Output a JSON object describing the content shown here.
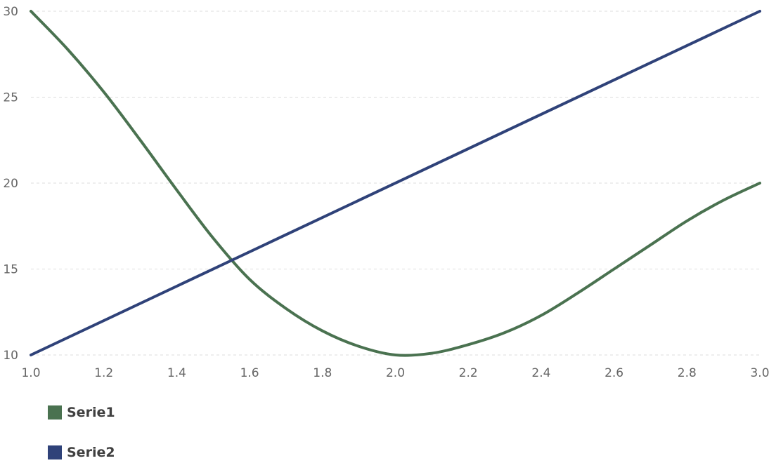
{
  "chart_data": {
    "type": "line",
    "x_ticks": [
      "1.0",
      "1.2",
      "1.4",
      "1.6",
      "1.8",
      "2.0",
      "2.2",
      "2.4",
      "2.6",
      "2.8",
      "3.0"
    ],
    "y_ticks": [
      "10",
      "15",
      "20",
      "25",
      "30"
    ],
    "xlim": [
      1.0,
      3.0
    ],
    "ylim": [
      10,
      30
    ],
    "grid": "horizontal-dashed",
    "legend_position": "bottom-left",
    "series": [
      {
        "name": "Serie1",
        "color": "#4a7250",
        "x": [
          1.0,
          1.1,
          1.2,
          1.3,
          1.4,
          1.5,
          1.6,
          1.7,
          1.8,
          1.9,
          2.0,
          2.1,
          2.2,
          2.3,
          2.4,
          2.5,
          2.6,
          2.7,
          2.8,
          2.9,
          3.0
        ],
        "values": [
          30.0,
          27.8,
          25.3,
          22.5,
          19.6,
          16.8,
          14.4,
          12.7,
          11.4,
          10.5,
          10.0,
          10.1,
          10.6,
          11.3,
          12.3,
          13.6,
          15.0,
          16.4,
          17.8,
          19.0,
          20.0
        ]
      },
      {
        "name": "Serie2",
        "color": "#2f4279",
        "x": [
          1.0,
          3.0
        ],
        "values": [
          10,
          30
        ]
      }
    ]
  }
}
